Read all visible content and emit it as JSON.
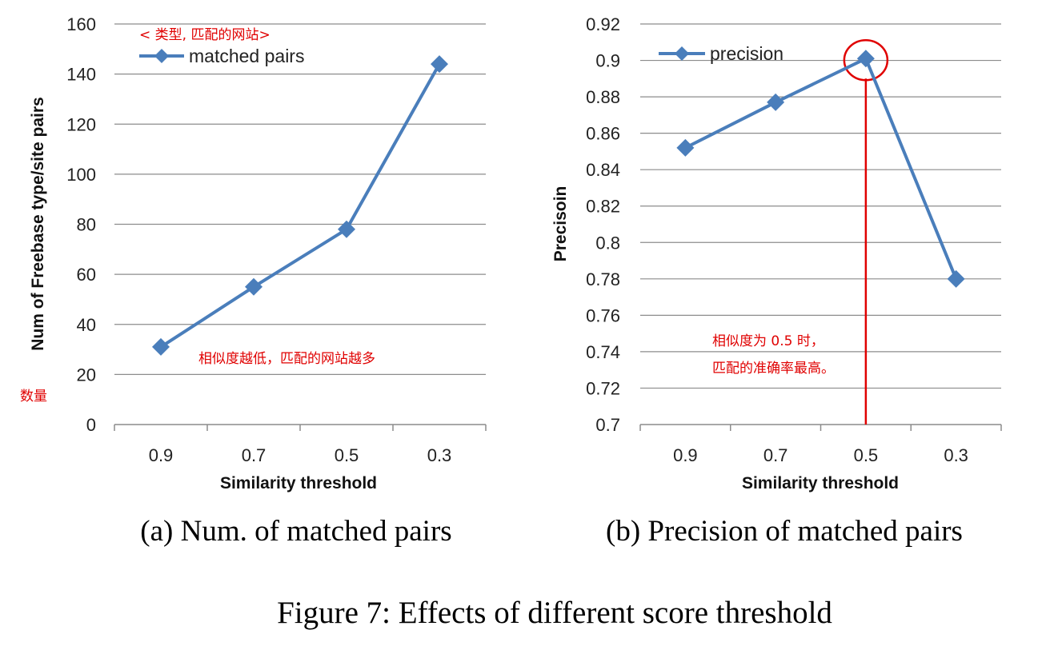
{
  "colors": {
    "series": "#4a7ebb",
    "annotation": "#e00000",
    "grid": "#8c8c8c"
  },
  "chart_data": [
    {
      "type": "line",
      "categories": [
        "0.9",
        "0.7",
        "0.5",
        "0.3"
      ],
      "series": [
        {
          "name": "matched pairs",
          "values": [
            31,
            55,
            78,
            144
          ]
        }
      ],
      "xlabel": "Similarity threshold",
      "ylabel": "Num of Freebase type/site pairs",
      "ylim": [
        0,
        160
      ],
      "yticks": [
        "0",
        "20",
        "40",
        "60",
        "80",
        "100",
        "120",
        "140",
        "160"
      ],
      "grid": true,
      "legend_position": "top-left",
      "annotations": {
        "legend_note": "< 类型, 匹配的网站>",
        "trend_note": "相似度越低，匹配的网站越多",
        "ylabel_note": "数量"
      },
      "caption": "(a) Num. of matched pairs"
    },
    {
      "type": "line",
      "categories": [
        "0.9",
        "0.7",
        "0.5",
        "0.3"
      ],
      "series": [
        {
          "name": "precision",
          "values": [
            0.852,
            0.877,
            0.901,
            0.78
          ]
        }
      ],
      "xlabel": "Similarity threshold",
      "ylabel": "Precisoin",
      "ylim": [
        0.7,
        0.92
      ],
      "yticks": [
        "0.7",
        "0.72",
        "0.74",
        "0.76",
        "0.78",
        "0.8",
        "0.82",
        "0.84",
        "0.86",
        "0.88",
        "0.9",
        "0.92"
      ],
      "grid": true,
      "legend_position": "top-left",
      "annotations": {
        "note_line1": "相似度为 0.5 时，",
        "note_line2": "匹配的准确率最高。",
        "highlight_category": "0.5"
      },
      "caption": "(b) Precision of matched pairs"
    }
  ],
  "figure_caption": "Figure 7: Effects of different score threshold"
}
